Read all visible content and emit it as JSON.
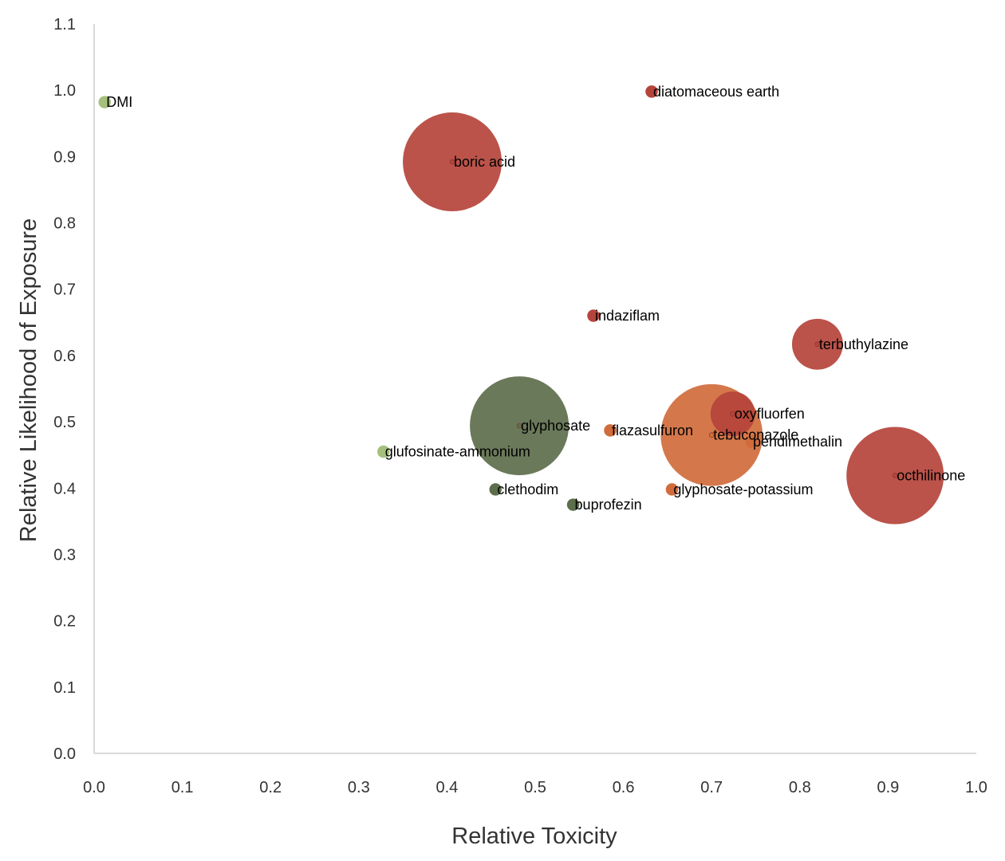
{
  "chart_data": {
    "type": "scatter",
    "variant": "bubble",
    "title": "",
    "xlabel": "Relative Toxicity",
    "ylabel": "Relative Likelihood of Exposure",
    "xlim": [
      0.0,
      1.0
    ],
    "ylim": [
      0.0,
      1.1
    ],
    "x_ticks": [
      "0.0",
      "0.1",
      "0.2",
      "0.3",
      "0.4",
      "0.5",
      "0.6",
      "0.7",
      "0.8",
      "0.9",
      "1.0"
    ],
    "y_ticks": [
      "0.0",
      "0.1",
      "0.2",
      "0.3",
      "0.4",
      "0.5",
      "0.6",
      "0.7",
      "0.8",
      "0.9",
      "1.0",
      "1.1"
    ],
    "grid": false,
    "legend": "none",
    "colors": {
      "red": "#b5443b",
      "orange": "#d06c3c",
      "dark_green": "#5d6e4c",
      "light_green": "#a4c07c"
    },
    "points": [
      {
        "name": "DMI",
        "x": 0.012,
        "y": 0.982,
        "size": 1,
        "color": "light_green"
      },
      {
        "name": "diatomaceous earth",
        "x": 0.632,
        "y": 0.998,
        "size": 1,
        "color": "red"
      },
      {
        "name": "boric acid",
        "x": 0.406,
        "y": 0.892,
        "size": 64,
        "color": "red"
      },
      {
        "name": "indaziflam",
        "x": 0.566,
        "y": 0.66,
        "size": 1,
        "color": "red"
      },
      {
        "name": "terbuthylazine",
        "x": 0.82,
        "y": 0.617,
        "size": 17,
        "color": "red"
      },
      {
        "name": "oxyfluorfen",
        "x": 0.724,
        "y": 0.512,
        "size": 13,
        "color": "red"
      },
      {
        "name": "glyphosate",
        "x": 0.482,
        "y": 0.494,
        "size": 64,
        "color": "dark_green"
      },
      {
        "name": "flazasulfuron",
        "x": 0.585,
        "y": 0.487,
        "size": 1,
        "color": "orange"
      },
      {
        "name": "tebuconazole",
        "x": 0.7,
        "y": 0.48,
        "size": 68,
        "color": "orange"
      },
      {
        "name": "pendimethalin",
        "x": 0.745,
        "y": 0.47,
        "size": 1,
        "color": "orange"
      },
      {
        "name": "glufosinate-ammonium",
        "x": 0.328,
        "y": 0.455,
        "size": 1,
        "color": "light_green"
      },
      {
        "name": "octhilinone",
        "x": 0.908,
        "y": 0.419,
        "size": 62,
        "color": "red"
      },
      {
        "name": "clethodim",
        "x": 0.455,
        "y": 0.398,
        "size": 1,
        "color": "dark_green"
      },
      {
        "name": "glyphosate-potassium",
        "x": 0.655,
        "y": 0.398,
        "size": 1,
        "color": "orange"
      },
      {
        "name": "buprofezin",
        "x": 0.543,
        "y": 0.375,
        "size": 1,
        "color": "dark_green"
      }
    ]
  }
}
